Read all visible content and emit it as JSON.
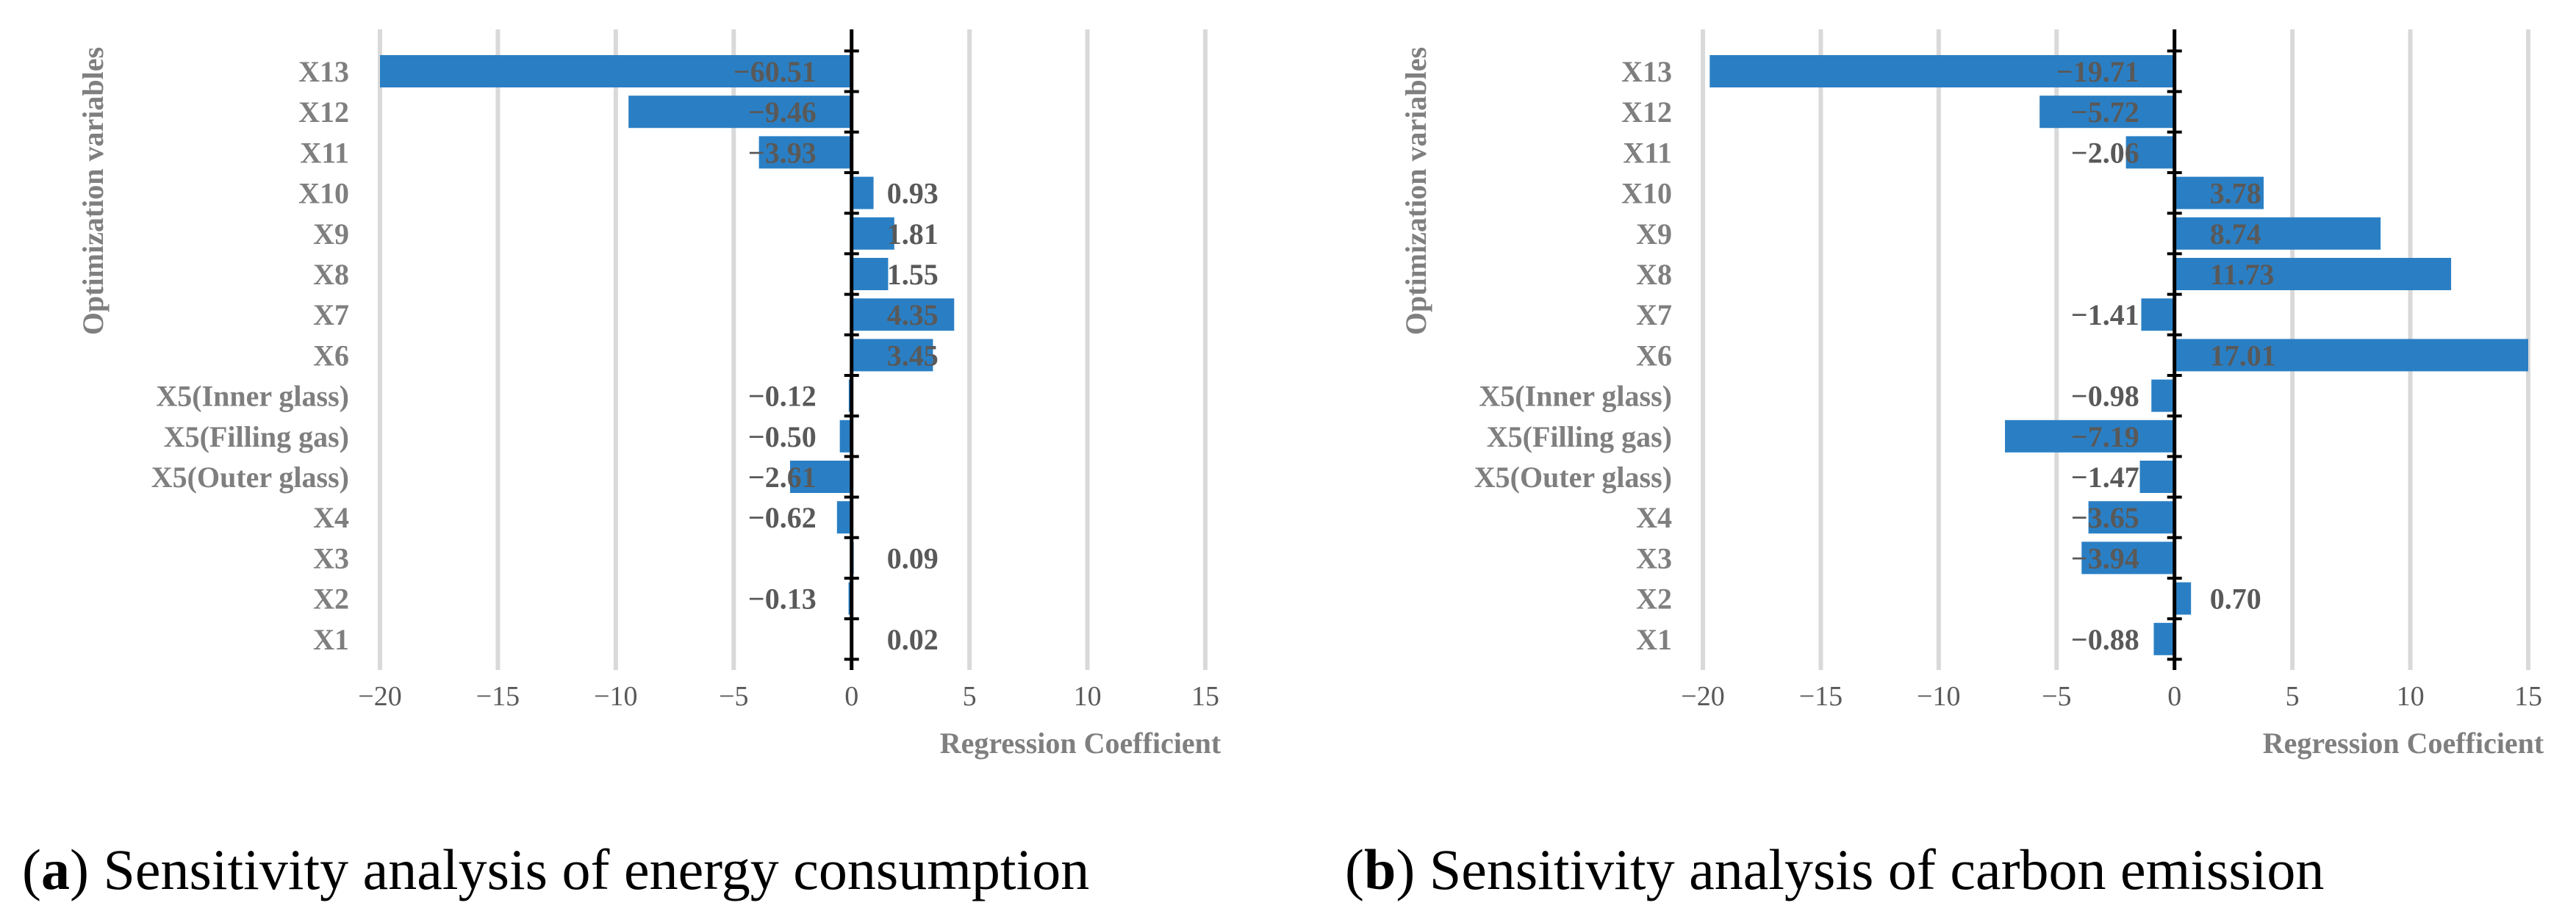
{
  "chart_data": [
    {
      "type": "bar",
      "orientation": "horizontal",
      "caption_letter": "a",
      "caption_text": " Sensitivity analysis of energy consumption",
      "categories": [
        "X13",
        "X12",
        "X11",
        "X10",
        "X9",
        "X8",
        "X7",
        "X6",
        "X5(Inner glass)",
        "X5(Filling gas)",
        "X5(Outer glass)",
        "X4",
        "X3",
        "X2",
        "X1"
      ],
      "values": [
        -60.51,
        -9.46,
        -3.93,
        0.93,
        1.81,
        1.55,
        4.35,
        3.45,
        -0.12,
        -0.5,
        -2.61,
        -0.62,
        0.09,
        -0.13,
        0.02
      ],
      "value_labels": [
        "−60.51",
        "−9.46",
        "−3.93",
        "0.93",
        "1.81",
        "1.55",
        "4.35",
        "3.45",
        "−0.12",
        "−0.50",
        "−2.61",
        "−0.62",
        "0.09",
        "−0.13",
        "0.02"
      ],
      "xlim": [
        -20,
        15
      ],
      "xticks": [
        -20,
        -15,
        -10,
        -5,
        0,
        5,
        10,
        15
      ],
      "xtick_labels": [
        "−20",
        "−15",
        "−10",
        "−5",
        "0",
        "5",
        "10",
        "15"
      ],
      "xlabel": "Regression Coefficient",
      "ylabel": "Optimization variables",
      "bar_color": "#2a7fc4",
      "grid": true
    },
    {
      "type": "bar",
      "orientation": "horizontal",
      "caption_letter": "b",
      "caption_text": " Sensitivity analysis of carbon emission",
      "categories": [
        "X13",
        "X12",
        "X11",
        "X10",
        "X9",
        "X8",
        "X7",
        "X6",
        "X5(Inner glass)",
        "X5(Filling gas)",
        "X5(Outer glass)",
        "X4",
        "X3",
        "X2",
        "X1"
      ],
      "values": [
        -19.71,
        -5.72,
        -2.06,
        3.78,
        8.74,
        11.73,
        -1.41,
        17.01,
        -0.98,
        -7.19,
        -1.47,
        -3.65,
        -3.94,
        0.7,
        -0.88
      ],
      "value_labels": [
        "−19.71",
        "−5.72",
        "−2.06",
        "3.78",
        "8.74",
        "11.73",
        "−1.41",
        "17.01",
        "−0.98",
        "−7.19",
        "−1.47",
        "−3.65",
        "−3.94",
        "0.70",
        "−0.88"
      ],
      "xlim": [
        -20,
        15
      ],
      "xticks": [
        -20,
        -15,
        -10,
        -5,
        0,
        5,
        10,
        15
      ],
      "xtick_labels": [
        "−20",
        "−15",
        "−10",
        "−5",
        "0",
        "5",
        "10",
        "15"
      ],
      "xlabel": "Regression Coefficient",
      "ylabel": "Optimization variables",
      "bar_color": "#2a7fc4",
      "grid": true
    }
  ]
}
